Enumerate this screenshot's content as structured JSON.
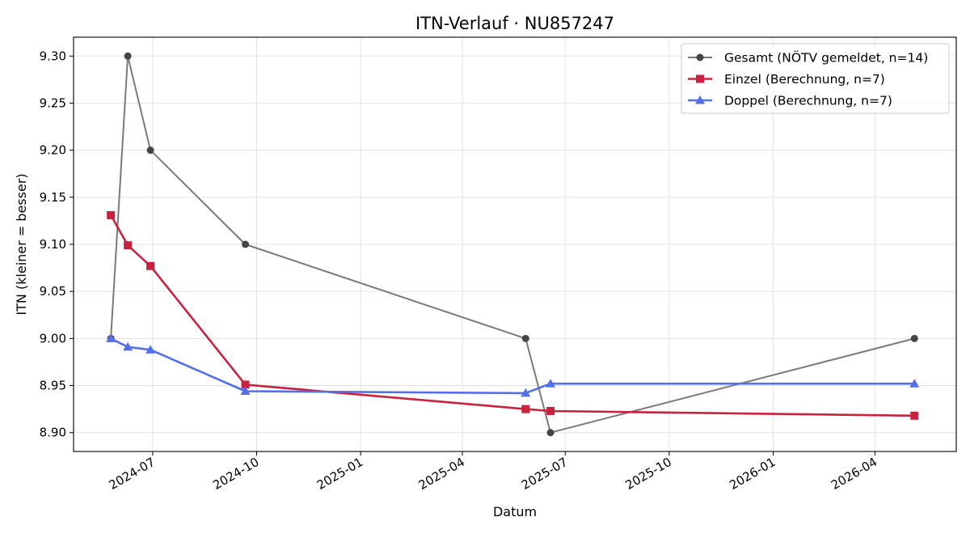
{
  "chart_data": {
    "type": "line",
    "title": "ITN-Verlauf · NU857247",
    "xlabel": "Datum",
    "ylabel": "ITN  (kleiner = besser)",
    "ylim": [
      8.88,
      9.32
    ],
    "xlim": [
      "2024-04-22",
      "2026-06-12"
    ],
    "grid": true,
    "legend_position": "top-right",
    "x_ticks": [
      "2024-07",
      "2024-10",
      "2025-01",
      "2025-04",
      "2025-07",
      "2025-10",
      "2026-01",
      "2026-04"
    ],
    "y_ticks": [
      "8.90",
      "8.95",
      "9.00",
      "9.05",
      "9.10",
      "9.15",
      "9.20",
      "9.25",
      "9.30"
    ],
    "series": [
      {
        "name": "Gesamt (NÖTV gemeldet, n=14)",
        "color": "#7a7a7a",
        "marker_color": "#454545",
        "marker": "circle",
        "points": [
          {
            "x": "2024-05-25",
            "y": 9.0
          },
          {
            "x": "2024-06-09",
            "y": 9.3
          },
          {
            "x": "2024-06-29",
            "y": 9.2
          },
          {
            "x": "2024-09-21",
            "y": 9.1
          },
          {
            "x": "2025-05-27",
            "y": 9.0
          },
          {
            "x": "2025-06-18",
            "y": 8.9
          },
          {
            "x": "2026-05-06",
            "y": 9.0
          }
        ]
      },
      {
        "name": "Einzel (Berechnung, n=7)",
        "color": "#c8223e",
        "marker_color": "#c8223e",
        "marker": "square",
        "points": [
          {
            "x": "2024-05-25",
            "y": 9.131
          },
          {
            "x": "2024-06-09",
            "y": 9.099
          },
          {
            "x": "2024-06-29",
            "y": 9.077
          },
          {
            "x": "2024-09-21",
            "y": 8.951
          },
          {
            "x": "2025-05-27",
            "y": 8.925
          },
          {
            "x": "2025-06-18",
            "y": 8.923
          },
          {
            "x": "2026-05-06",
            "y": 8.918
          }
        ]
      },
      {
        "name": "Doppel (Berechnung, n=7)",
        "color": "#5470e8",
        "marker_color": "#5470e8",
        "marker": "triangle",
        "points": [
          {
            "x": "2024-05-25",
            "y": 9.0
          },
          {
            "x": "2024-06-09",
            "y": 8.991
          },
          {
            "x": "2024-06-29",
            "y": 8.988
          },
          {
            "x": "2024-09-21",
            "y": 8.944
          },
          {
            "x": "2025-05-27",
            "y": 8.942
          },
          {
            "x": "2025-06-18",
            "y": 8.952
          },
          {
            "x": "2026-05-06",
            "y": 8.952
          }
        ]
      }
    ]
  }
}
